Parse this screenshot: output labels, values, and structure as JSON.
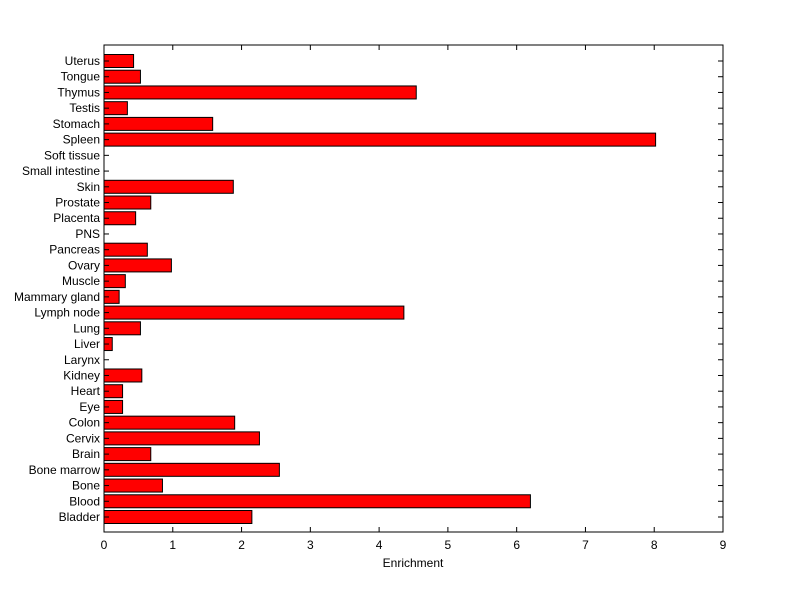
{
  "chart_data": {
    "type": "bar",
    "orientation": "horizontal",
    "title": "",
    "xlabel": "Enrichment",
    "ylabel": "",
    "xlim": [
      0,
      9
    ],
    "x_ticks": [
      0,
      1,
      2,
      3,
      4,
      5,
      6,
      7,
      8,
      9
    ],
    "grid": false,
    "legend": "none",
    "bar_color": "#ff0000",
    "bar_edge_color": "#000000",
    "categories": [
      "Bladder",
      "Blood",
      "Bone",
      "Bone marrow",
      "Brain",
      "Cervix",
      "Colon",
      "Eye",
      "Heart",
      "Kidney",
      "Larynx",
      "Liver",
      "Lung",
      "Lymph node",
      "Mammary gland",
      "Muscle",
      "Ovary",
      "Pancreas",
      "PNS",
      "Placenta",
      "Prostate",
      "Skin",
      "Small intestine",
      "Soft tissue",
      "Spleen",
      "Stomach",
      "Testis",
      "Thymus",
      "Tongue",
      "Uterus"
    ],
    "values": [
      2.15,
      6.2,
      0.85,
      2.55,
      0.68,
      2.26,
      1.9,
      0.27,
      0.27,
      0.55,
      0,
      0.12,
      0.53,
      4.36,
      0.22,
      0.31,
      0.98,
      0.63,
      0,
      0.46,
      0.68,
      1.88,
      0,
      0,
      8.02,
      1.58,
      0.34,
      4.54,
      0.53,
      0.43
    ]
  }
}
